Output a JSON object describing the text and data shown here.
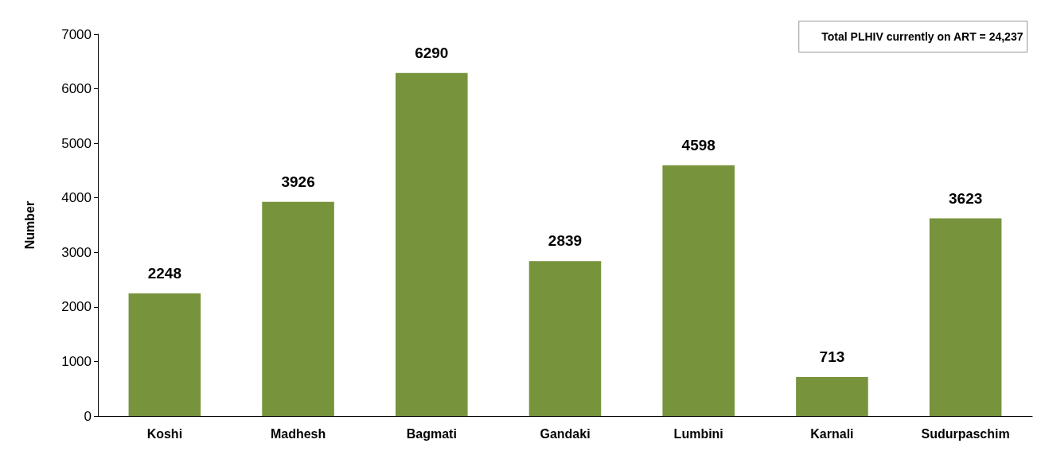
{
  "chart_data": {
    "type": "bar",
    "ylabel": "Number",
    "categories": [
      "Koshi",
      "Madhesh",
      "Bagmati",
      "Gandaki",
      "Lumbini",
      "Karnali",
      "Sudurpaschim"
    ],
    "values": [
      2248,
      3926,
      6290,
      2839,
      4598,
      713,
      3623
    ],
    "color": "#77933c",
    "ylim": [
      0,
      7000
    ],
    "yticks": [
      0,
      1000,
      2000,
      3000,
      4000,
      5000,
      6000,
      7000
    ],
    "grid": false,
    "data_labels": true,
    "annotations": [
      "Total PLHIV currently on ART = 24,237"
    ]
  }
}
